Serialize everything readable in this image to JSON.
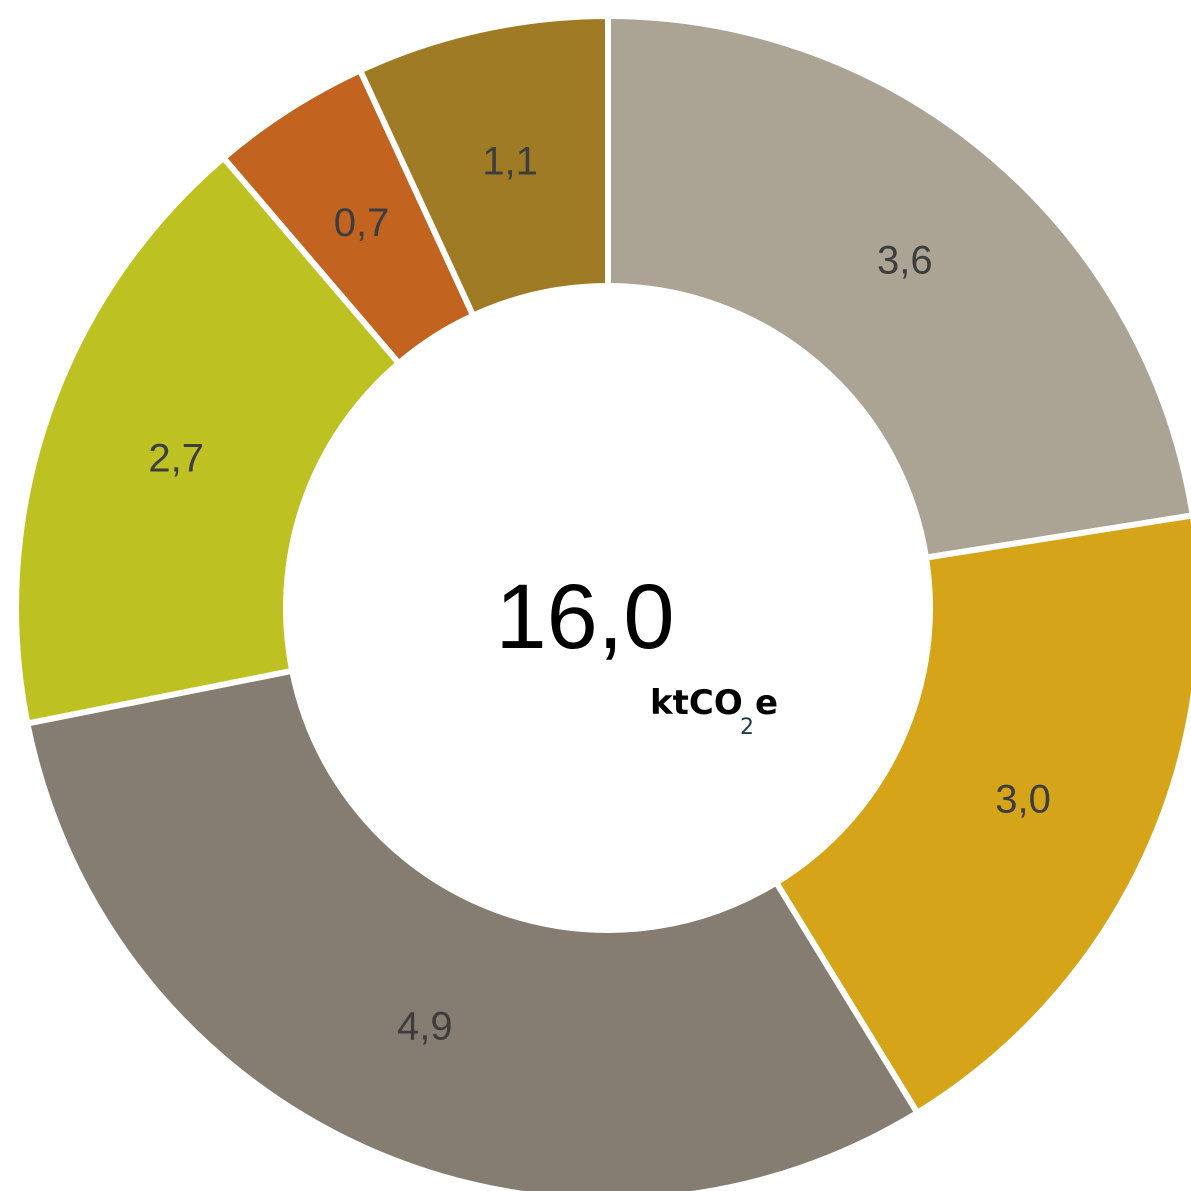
{
  "chart_data": {
    "type": "pie",
    "variant": "donut",
    "title": "",
    "start_angle_deg": 0,
    "direction": "clockwise",
    "segment_stroke": "#ffffff",
    "slices": [
      {
        "label": "3,6",
        "value": 3.6,
        "color": "#aba394"
      },
      {
        "label": "3,0",
        "value": 3.0,
        "color": "#d5a418"
      },
      {
        "label": "4,9",
        "value": 4.9,
        "color": "#857d71"
      },
      {
        "label": "2,7",
        "value": 2.7,
        "color": "#bdc222"
      },
      {
        "label": "0,7",
        "value": 0.7,
        "color": "#c26320"
      },
      {
        "label": "1,1",
        "value": 1.1,
        "color": "#a07b26"
      }
    ],
    "center": {
      "total_label": "16,0",
      "unit_prefix": "ktCO",
      "unit_subscript": "2",
      "unit_suffix": "e"
    }
  }
}
